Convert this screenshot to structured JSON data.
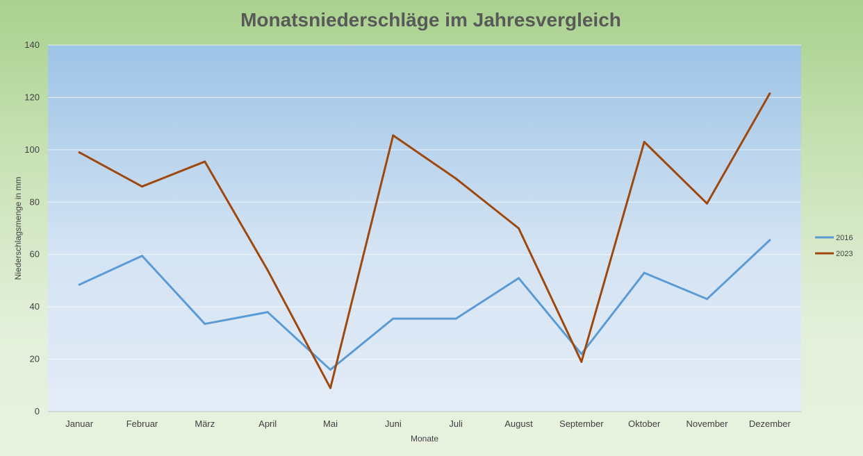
{
  "chart_data": {
    "type": "line",
    "title": "Monatsniederschläge im Jahresvergleich",
    "xlabel": "Monate",
    "ylabel": "Niederschlagsmenge in mm",
    "ylim": [
      0,
      140
    ],
    "yticks": [
      0,
      20,
      40,
      60,
      80,
      100,
      120,
      140
    ],
    "grid": true,
    "legend_position": "right",
    "categories": [
      "Januar",
      "Februar",
      "März",
      "April",
      "Mai",
      "Juni",
      "Juli",
      "August",
      "September",
      "Oktober",
      "November",
      "Dezember"
    ],
    "series": [
      {
        "name": "2016",
        "color": "#5b9bd5",
        "values": [
          48.5,
          59.5,
          33.5,
          38,
          16,
          35.5,
          35.5,
          51,
          22,
          53,
          43,
          65.5
        ]
      },
      {
        "name": "2023",
        "color": "#9e480e",
        "values": [
          99,
          86,
          95.5,
          54,
          9,
          105.5,
          89,
          70,
          19,
          103,
          79.5,
          121.5
        ]
      }
    ]
  }
}
